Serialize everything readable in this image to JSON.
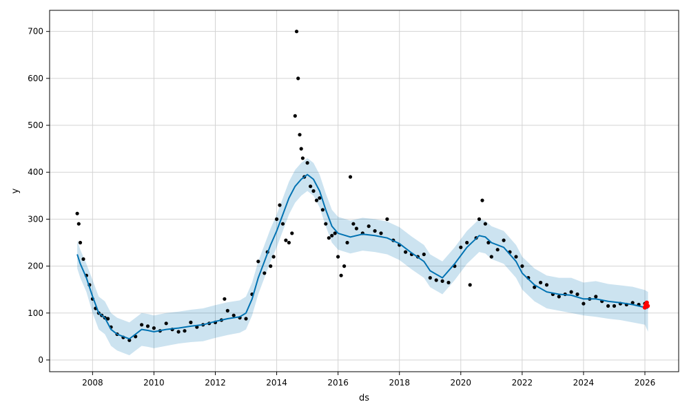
{
  "chart_data": {
    "type": "scatter",
    "title": "",
    "xlabel": "ds",
    "ylabel": "y",
    "xlim": [
      2006.6,
      2027.1
    ],
    "ylim": [
      -25,
      745
    ],
    "x_ticks": [
      2008,
      2010,
      2012,
      2014,
      2016,
      2018,
      2020,
      2022,
      2024,
      2026
    ],
    "x_tick_labels": [
      "2008",
      "2010",
      "2012",
      "2014",
      "2016",
      "2018",
      "2020",
      "2022",
      "2024",
      "2026"
    ],
    "y_ticks": [
      0,
      100,
      200,
      300,
      400,
      500,
      600,
      700
    ],
    "y_tick_labels": [
      "0",
      "100",
      "200",
      "300",
      "400",
      "500",
      "600",
      "700"
    ],
    "grid": true,
    "legend": "none",
    "colors": {
      "observed": "#000000",
      "forecast_line": "#0072B2",
      "uncertainty_band": "#0072B2",
      "forecast_highlight": "#ff0000",
      "grid": "#d3d3d3",
      "axes": "#000000"
    },
    "series": [
      {
        "kind": "observed_points",
        "x": [
          2007.5,
          2007.55,
          2007.6,
          2007.7,
          2007.8,
          2007.9,
          2008.0,
          2008.1,
          2008.2,
          2008.3,
          2008.4,
          2008.5,
          2008.6,
          2008.8,
          2009.0,
          2009.2,
          2009.4,
          2009.6,
          2009.8,
          2010.0,
          2010.2,
          2010.4,
          2010.6,
          2010.8,
          2011.0,
          2011.2,
          2011.4,
          2011.6,
          2011.8,
          2012.0,
          2012.2,
          2012.3,
          2012.4,
          2012.6,
          2012.8,
          2013.0,
          2013.2,
          2013.4,
          2013.6,
          2013.7,
          2013.8,
          2013.9,
          2014.0,
          2014.1,
          2014.2,
          2014.3,
          2014.4,
          2014.5,
          2014.6,
          2014.65,
          2014.7,
          2014.75,
          2014.8,
          2014.85,
          2014.9,
          2015.0,
          2015.1,
          2015.2,
          2015.3,
          2015.4,
          2015.5,
          2015.6,
          2015.7,
          2015.8,
          2015.9,
          2016.0,
          2016.1,
          2016.2,
          2016.3,
          2016.4,
          2016.5,
          2016.6,
          2016.8,
          2017.0,
          2017.2,
          2017.4,
          2017.6,
          2017.8,
          2018.0,
          2018.2,
          2018.4,
          2018.6,
          2018.8,
          2019.0,
          2019.2,
          2019.4,
          2019.6,
          2019.8,
          2020.0,
          2020.2,
          2020.3,
          2020.5,
          2020.6,
          2020.7,
          2020.8,
          2020.9,
          2021.0,
          2021.2,
          2021.4,
          2021.6,
          2021.8,
          2022.0,
          2022.2,
          2022.4,
          2022.6,
          2022.8,
          2023.0,
          2023.2,
          2023.4,
          2023.6,
          2023.8,
          2024.0,
          2024.2,
          2024.4,
          2024.6,
          2024.8,
          2025.0,
          2025.2,
          2025.4,
          2025.6,
          2025.8,
          2026.0
        ],
        "y": [
          312,
          290,
          250,
          215,
          180,
          160,
          130,
          110,
          100,
          95,
          90,
          88,
          70,
          55,
          48,
          42,
          50,
          75,
          72,
          68,
          62,
          78,
          65,
          60,
          62,
          80,
          70,
          75,
          78,
          80,
          85,
          130,
          105,
          95,
          90,
          88,
          140,
          210,
          185,
          230,
          200,
          220,
          300,
          330,
          290,
          255,
          250,
          270,
          520,
          700,
          600,
          480,
          450,
          430,
          390,
          420,
          370,
          360,
          340,
          345,
          320,
          290,
          260,
          265,
          270,
          220,
          180,
          200,
          250,
          390,
          290,
          280,
          270,
          285,
          275,
          270,
          300,
          255,
          245,
          230,
          225,
          220,
          225,
          175,
          170,
          168,
          165,
          200,
          240,
          250,
          160,
          260,
          300,
          340,
          290,
          250,
          220,
          235,
          255,
          230,
          220,
          200,
          175,
          155,
          165,
          160,
          140,
          135,
          140,
          145,
          140,
          120,
          130,
          135,
          125,
          115,
          115,
          120,
          118,
          122,
          118,
          120
        ]
      },
      {
        "kind": "forecast_line",
        "x": [
          2007.5,
          2007.6,
          2007.8,
          2008.0,
          2008.2,
          2008.4,
          2008.6,
          2008.8,
          2009.0,
          2009.2,
          2009.4,
          2009.6,
          2009.8,
          2010.0,
          2010.4,
          2010.8,
          2011.2,
          2011.6,
          2012.0,
          2012.4,
          2012.8,
          2013.0,
          2013.2,
          2013.4,
          2013.6,
          2013.8,
          2014.0,
          2014.2,
          2014.4,
          2014.6,
          2014.8,
          2015.0,
          2015.2,
          2015.4,
          2015.6,
          2015.8,
          2016.0,
          2016.4,
          2016.8,
          2017.2,
          2017.6,
          2018.0,
          2018.4,
          2018.8,
          2019.0,
          2019.4,
          2019.8,
          2020.2,
          2020.6,
          2020.8,
          2021.0,
          2021.4,
          2021.8,
          2022.0,
          2022.4,
          2022.8,
          2023.2,
          2023.6,
          2024.0,
          2024.4,
          2024.8,
          2025.2,
          2025.6,
          2026.0,
          2026.1
        ],
        "y": [
          225,
          205,
          175,
          135,
          100,
          90,
          65,
          55,
          50,
          45,
          55,
          65,
          63,
          60,
          65,
          68,
          72,
          75,
          82,
          88,
          92,
          100,
          130,
          175,
          210,
          245,
          275,
          310,
          345,
          370,
          385,
          395,
          385,
          360,
          320,
          285,
          270,
          262,
          268,
          265,
          260,
          248,
          228,
          210,
          190,
          175,
          205,
          240,
          265,
          262,
          250,
          240,
          210,
          185,
          160,
          145,
          140,
          138,
          130,
          130,
          125,
          122,
          118,
          112,
          110
        ]
      },
      {
        "kind": "uncertainty_band",
        "x": [
          2007.5,
          2007.6,
          2007.8,
          2008.0,
          2008.2,
          2008.4,
          2008.6,
          2008.8,
          2009.0,
          2009.2,
          2009.4,
          2009.6,
          2009.8,
          2010.0,
          2010.4,
          2010.8,
          2011.2,
          2011.6,
          2012.0,
          2012.4,
          2012.8,
          2013.0,
          2013.2,
          2013.4,
          2013.6,
          2013.8,
          2014.0,
          2014.2,
          2014.4,
          2014.6,
          2014.8,
          2015.0,
          2015.2,
          2015.4,
          2015.6,
          2015.8,
          2016.0,
          2016.4,
          2016.8,
          2017.2,
          2017.6,
          2018.0,
          2018.4,
          2018.8,
          2019.0,
          2019.4,
          2019.8,
          2020.2,
          2020.6,
          2020.8,
          2021.0,
          2021.4,
          2021.8,
          2022.0,
          2022.4,
          2022.8,
          2023.2,
          2023.6,
          2024.0,
          2024.4,
          2024.8,
          2025.2,
          2025.6,
          2026.0,
          2026.1
        ],
        "lower": [
          195,
          175,
          145,
          100,
          65,
          55,
          30,
          20,
          15,
          10,
          20,
          30,
          28,
          25,
          30,
          35,
          38,
          40,
          47,
          53,
          58,
          65,
          95,
          140,
          175,
          210,
          240,
          275,
          310,
          335,
          350,
          360,
          350,
          325,
          285,
          250,
          235,
          227,
          233,
          230,
          225,
          213,
          193,
          175,
          155,
          140,
          170,
          205,
          230,
          227,
          215,
          205,
          175,
          150,
          125,
          110,
          105,
          100,
          95,
          92,
          88,
          85,
          80,
          75,
          60
        ],
        "upper": [
          255,
          235,
          205,
          170,
          135,
          125,
          100,
          90,
          85,
          80,
          90,
          100,
          98,
          95,
          100,
          103,
          107,
          110,
          117,
          123,
          127,
          135,
          165,
          210,
          245,
          280,
          310,
          345,
          380,
          405,
          420,
          430,
          420,
          395,
          355,
          320,
          305,
          297,
          303,
          300,
          295,
          283,
          263,
          245,
          225,
          210,
          240,
          275,
          300,
          297,
          285,
          275,
          245,
          220,
          195,
          180,
          175,
          175,
          165,
          168,
          162,
          159,
          156,
          149,
          145
        ]
      },
      {
        "kind": "forecast_highlight",
        "x": [
          2026.0,
          2026.03,
          2026.06,
          2026.09
        ],
        "y": [
          112,
          118,
          122,
          115
        ]
      }
    ]
  }
}
